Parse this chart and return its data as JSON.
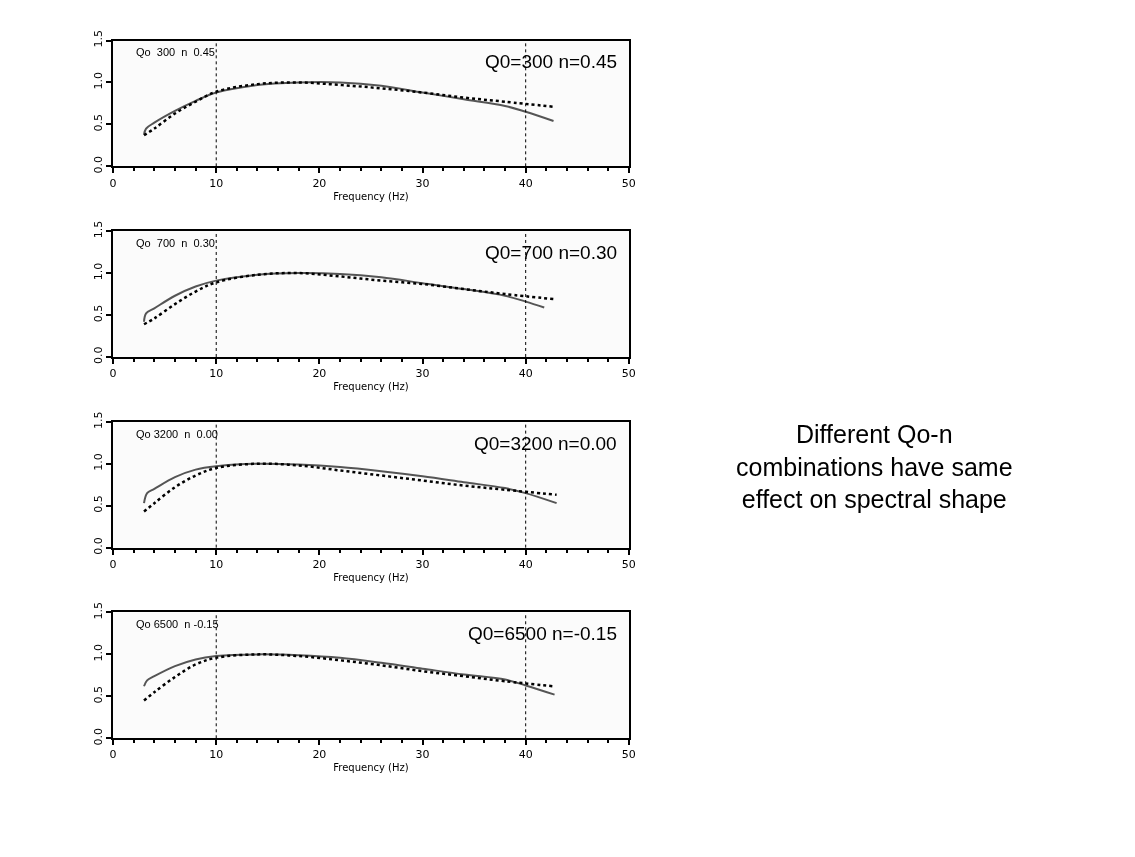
{
  "chart_data": [
    {
      "type": "line",
      "xlabel": "Frequency (Hz)",
      "annotations": [
        "Qo  300  n  0.45",
        "Q0=300 n=0.45"
      ],
      "xlim": [
        0,
        50
      ],
      "xticks": [
        0,
        10,
        20,
        30,
        40,
        50
      ],
      "ylim": [
        0,
        1.5
      ],
      "yticks": [
        {
          "value": 0,
          "label": "0.0"
        },
        {
          "value": 0.5,
          "label": "0.5"
        },
        {
          "value": 1,
          "label": "1.0"
        },
        {
          "value": 1.5,
          "label": "1.5"
        }
      ],
      "ref_lines": [
        {
          "axis": "x",
          "value": 10,
          "color": "#000000",
          "line_style": "dotted"
        },
        {
          "axis": "x",
          "value": 40,
          "color": "#000000",
          "line_style": "dotted"
        }
      ],
      "series": [
        {
          "color": "#555555",
          "line_style": "solid",
          "x": [
            3,
            3.2,
            4,
            6,
            8,
            10,
            14,
            18,
            22,
            26,
            30,
            34,
            38,
            40,
            42.7
          ],
          "values": [
            0.38,
            0.45,
            0.52,
            0.66,
            0.78,
            0.88,
            0.97,
            1.0,
            1.0,
            0.96,
            0.88,
            0.8,
            0.72,
            0.65,
            0.54
          ]
        },
        {
          "color": "#000000",
          "line_style": "dotted",
          "x": [
            3,
            4,
            6,
            8,
            10,
            14,
            18,
            22,
            26,
            30,
            34,
            38,
            42.7
          ],
          "values": [
            0.37,
            0.45,
            0.63,
            0.77,
            0.89,
            0.98,
            1.0,
            0.97,
            0.93,
            0.88,
            0.82,
            0.77,
            0.71
          ]
        }
      ]
    },
    {
      "type": "line",
      "xlabel": "Frequency (Hz)",
      "annotations": [
        "Qo  700  n  0.30",
        "Q0=700 n=0.30"
      ],
      "xlim": [
        0,
        50
      ],
      "xticks": [
        0,
        10,
        20,
        30,
        40,
        50
      ],
      "ylim": [
        0,
        1.5
      ],
      "yticks": [
        {
          "value": 0,
          "label": "0.0"
        },
        {
          "value": 0.5,
          "label": "0.5"
        },
        {
          "value": 1,
          "label": "1.0"
        },
        {
          "value": 1.5,
          "label": "1.5"
        }
      ],
      "ref_lines": [
        {
          "axis": "x",
          "value": 10,
          "color": "#000000",
          "line_style": "dotted"
        },
        {
          "axis": "x",
          "value": 40,
          "color": "#000000",
          "line_style": "dotted"
        }
      ],
      "series": [
        {
          "color": "#555555",
          "line_style": "solid",
          "x": [
            3,
            3.2,
            4,
            6,
            8,
            10,
            14,
            18,
            22,
            26,
            30,
            34,
            38,
            40,
            41.8
          ],
          "values": [
            0.42,
            0.52,
            0.58,
            0.73,
            0.84,
            0.91,
            0.98,
            1.0,
            0.99,
            0.95,
            0.88,
            0.81,
            0.73,
            0.66,
            0.59
          ]
        },
        {
          "color": "#000000",
          "line_style": "dotted",
          "x": [
            3,
            4,
            6,
            8,
            10,
            14,
            18,
            22,
            26,
            30,
            34,
            38,
            42.7
          ],
          "values": [
            0.39,
            0.46,
            0.63,
            0.78,
            0.89,
            0.98,
            1.0,
            0.96,
            0.91,
            0.87,
            0.81,
            0.75,
            0.69
          ]
        }
      ]
    },
    {
      "type": "line",
      "xlabel": "Frequency (Hz)",
      "annotations": [
        "Qo 3200  n  0.00",
        "Q0=3200 n=0.00"
      ],
      "xlim": [
        0,
        50
      ],
      "xticks": [
        0,
        10,
        20,
        30,
        40,
        50
      ],
      "ylim": [
        0,
        1.5
      ],
      "yticks": [
        {
          "value": 0,
          "label": "0.0"
        },
        {
          "value": 0.5,
          "label": "0.5"
        },
        {
          "value": 1,
          "label": "1.0"
        },
        {
          "value": 1.5,
          "label": "1.5"
        }
      ],
      "ref_lines": [
        {
          "axis": "x",
          "value": 10,
          "color": "#000000",
          "line_style": "dotted"
        },
        {
          "axis": "x",
          "value": 40,
          "color": "#000000",
          "line_style": "dotted"
        }
      ],
      "series": [
        {
          "color": "#555555",
          "line_style": "solid",
          "x": [
            3,
            3.3,
            4,
            6,
            8,
            10,
            14,
            18,
            22,
            26,
            30,
            34,
            38,
            40,
            43
          ],
          "values": [
            0.53,
            0.65,
            0.7,
            0.84,
            0.93,
            0.97,
            1.0,
            0.99,
            0.96,
            0.91,
            0.85,
            0.78,
            0.71,
            0.65,
            0.53
          ]
        },
        {
          "color": "#000000",
          "line_style": "dotted",
          "x": [
            3,
            4,
            6,
            8,
            10,
            14,
            18,
            22,
            26,
            30,
            34,
            38,
            43
          ],
          "values": [
            0.43,
            0.53,
            0.72,
            0.86,
            0.95,
            1.0,
            0.98,
            0.92,
            0.86,
            0.8,
            0.74,
            0.69,
            0.63
          ]
        }
      ]
    },
    {
      "type": "line",
      "xlabel": "Frequency (Hz)",
      "annotations": [
        "Qo 6500  n -0.15",
        "Q0=6500 n=-0.15"
      ],
      "xlim": [
        0,
        50
      ],
      "xticks": [
        0,
        10,
        20,
        30,
        40,
        50
      ],
      "ylim": [
        0,
        1.5
      ],
      "yticks": [
        {
          "value": 0,
          "label": "0.0"
        },
        {
          "value": 0.5,
          "label": "0.5"
        },
        {
          "value": 1,
          "label": "1.0"
        },
        {
          "value": 1.5,
          "label": "1.5"
        }
      ],
      "ref_lines": [
        {
          "axis": "x",
          "value": 10,
          "color": "#000000",
          "line_style": "dotted"
        },
        {
          "axis": "x",
          "value": 40,
          "color": "#000000",
          "line_style": "dotted"
        }
      ],
      "series": [
        {
          "color": "#555555",
          "line_style": "solid",
          "x": [
            3,
            3.3,
            4,
            6,
            8,
            10,
            14,
            18,
            22,
            26,
            30,
            34,
            38,
            40,
            42.8
          ],
          "values": [
            0.62,
            0.69,
            0.74,
            0.86,
            0.94,
            0.98,
            1.0,
            0.99,
            0.96,
            0.9,
            0.83,
            0.76,
            0.7,
            0.63,
            0.52
          ]
        },
        {
          "color": "#000000",
          "line_style": "dotted",
          "x": [
            3,
            4,
            6,
            8,
            10,
            14,
            18,
            22,
            26,
            30,
            34,
            38,
            42.7
          ],
          "values": [
            0.45,
            0.55,
            0.73,
            0.88,
            0.96,
            1.0,
            0.98,
            0.93,
            0.87,
            0.8,
            0.74,
            0.68,
            0.62
          ]
        }
      ]
    },
    {
      "type": "other",
      "annotations": [
        "Different Qo-n\ncombinations have same\neffect on spectral shape"
      ]
    }
  ]
}
